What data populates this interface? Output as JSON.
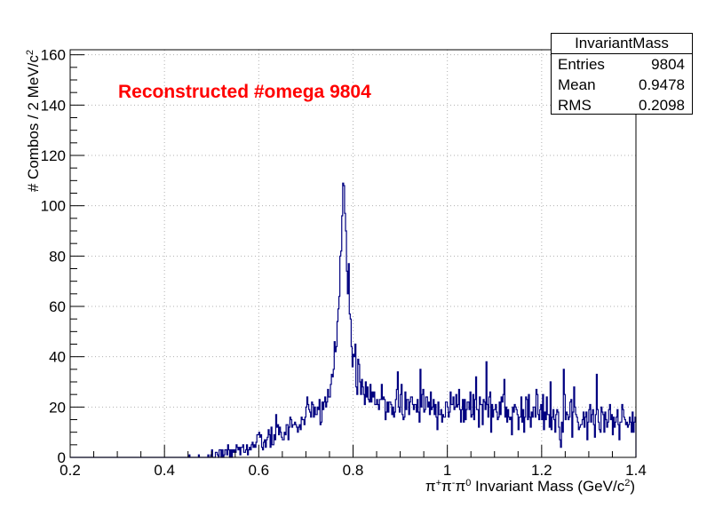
{
  "chart_data": {
    "type": "histogram",
    "title": "",
    "annotation": {
      "text": "Reconstructed #omega 9804",
      "color": "#ff0000"
    },
    "xlabel_parts": [
      {
        "t": "π"
      },
      {
        "t": "+",
        "sup": true
      },
      {
        "t": "π"
      },
      {
        "t": "-",
        "sup": true
      },
      {
        "t": "π"
      },
      {
        "t": "0",
        "sup": true
      },
      {
        "t": " Invariant Mass (GeV/c"
      },
      {
        "t": "2",
        "sup": true
      },
      {
        "t": ")"
      }
    ],
    "ylabel_parts": [
      {
        "t": "# Combos / 2 MeV/c"
      },
      {
        "t": "2",
        "sup": true
      }
    ],
    "xlim": [
      0.2,
      1.4
    ],
    "ylim": [
      0,
      162
    ],
    "bin_width": 0.002,
    "x_ticks": [
      0.2,
      0.4,
      0.6,
      0.8,
      1,
      1.2,
      1.4
    ],
    "x_tick_labels": [
      "0.2",
      "0.4",
      "0.6",
      "0.8",
      "1",
      "1.2",
      "1.4"
    ],
    "y_ticks": [
      0,
      20,
      40,
      60,
      80,
      100,
      120,
      140,
      160
    ],
    "y_tick_labels": [
      "0",
      "20",
      "40",
      "60",
      "80",
      "100",
      "120",
      "140",
      "160"
    ],
    "grid": true,
    "line_color": "#000080",
    "stats": {
      "title": "InvariantMass",
      "rows": [
        {
          "label": "Entries",
          "value": "9804"
        },
        {
          "label": "Mean",
          "value": "0.9478"
        },
        {
          "label": "RMS",
          "value": "0.2098"
        }
      ]
    },
    "envelope": [
      [
        0.44,
        0
      ],
      [
        0.46,
        0.6
      ],
      [
        0.5,
        1.2
      ],
      [
        0.54,
        2.5
      ],
      [
        0.58,
        4
      ],
      [
        0.62,
        7
      ],
      [
        0.66,
        11
      ],
      [
        0.7,
        15
      ],
      [
        0.72,
        18
      ],
      [
        0.74,
        22
      ],
      [
        0.75,
        26
      ],
      [
        0.76,
        33
      ],
      [
        0.765,
        45
      ],
      [
        0.77,
        63
      ],
      [
        0.775,
        85
      ],
      [
        0.78,
        102
      ],
      [
        0.785,
        96
      ],
      [
        0.79,
        76
      ],
      [
        0.795,
        52
      ],
      [
        0.8,
        38
      ],
      [
        0.81,
        30
      ],
      [
        0.82,
        25
      ],
      [
        0.85,
        22
      ],
      [
        0.9,
        21
      ],
      [
        0.95,
        21
      ],
      [
        1.0,
        20
      ],
      [
        1.05,
        20
      ],
      [
        1.1,
        19
      ],
      [
        1.15,
        18.5
      ],
      [
        1.2,
        18
      ],
      [
        1.25,
        17
      ],
      [
        1.3,
        16
      ],
      [
        1.35,
        15
      ],
      [
        1.4,
        14
      ]
    ],
    "peaks": [
      [
        0.778,
        109
      ],
      [
        0.78,
        108
      ],
      [
        0.776,
        96
      ],
      [
        0.782,
        97
      ],
      [
        0.784,
        90
      ],
      [
        0.774,
        82
      ],
      [
        0.772,
        80
      ],
      [
        0.786,
        74
      ],
      [
        0.77,
        64
      ],
      [
        0.788,
        65
      ],
      [
        1.082,
        38
      ],
      [
        0.942,
        35
      ],
      [
        0.896,
        34
      ],
      [
        1.246,
        35
      ],
      [
        1.316,
        33
      ],
      [
        1.218,
        30
      ],
      [
        1.06,
        32
      ],
      [
        1.12,
        31
      ],
      [
        0.8,
        41
      ],
      [
        0.794,
        55
      ]
    ]
  }
}
